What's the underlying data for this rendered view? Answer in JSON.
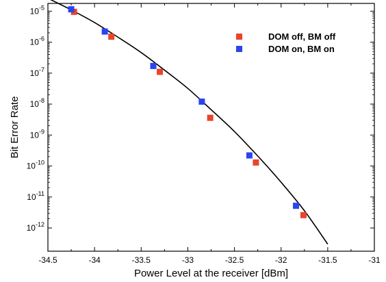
{
  "chart_data": {
    "type": "scatter",
    "title": "",
    "xlabel": "Power Level at the receiver [dBm]",
    "ylabel": "Bit Error Rate",
    "xlim": [
      -34.5,
      -31
    ],
    "ylim_log10": [
      -12.75,
      -4.75
    ],
    "yscale": "log",
    "x_ticks": [
      {
        "value": -34.5,
        "label": "-34.5"
      },
      {
        "value": -34,
        "label": "-34"
      },
      {
        "value": -33.5,
        "label": "-33.5"
      },
      {
        "value": -33,
        "label": "-33"
      },
      {
        "value": -32.5,
        "label": "-32.5"
      },
      {
        "value": -32,
        "label": "-32"
      },
      {
        "value": -31.5,
        "label": "-31.5"
      },
      {
        "value": -31,
        "label": "-31"
      }
    ],
    "y_ticks": [
      {
        "exp": -5,
        "base": "10",
        "sup": "-5"
      },
      {
        "exp": -6,
        "base": "10",
        "sup": "-6"
      },
      {
        "exp": -7,
        "base": "10",
        "sup": "-7"
      },
      {
        "exp": -8,
        "base": "10",
        "sup": "-8"
      },
      {
        "exp": -9,
        "base": "10",
        "sup": "-9"
      },
      {
        "exp": -10,
        "base": "10",
        "sup": "-10"
      },
      {
        "exp": -11,
        "base": "10",
        "sup": "-11"
      },
      {
        "exp": -12,
        "base": "10",
        "sup": "-12"
      }
    ],
    "series": [
      {
        "name": "DOM off,  BM off",
        "color": "#e8452a",
        "marker": "square",
        "points": [
          {
            "x": -34.22,
            "y": 9.5e-06
          },
          {
            "x": -33.82,
            "y": 1.5e-06
          },
          {
            "x": -33.3,
            "y": 1.1e-07
          },
          {
            "x": -32.76,
            "y": 3.6e-09
          },
          {
            "x": -32.27,
            "y": 1.3e-10
          },
          {
            "x": -31.76,
            "y": 2.6e-12
          }
        ]
      },
      {
        "name": "DOM on,  BM on",
        "color": "#2a44f0",
        "marker": "square",
        "points": [
          {
            "x": -34.25,
            "y": 1.15e-05
          },
          {
            "x": -33.89,
            "y": 2.2e-06
          },
          {
            "x": -33.37,
            "y": 1.7e-07
          },
          {
            "x": -32.85,
            "y": 1.2e-08
          },
          {
            "x": -32.34,
            "y": 2.2e-10
          },
          {
            "x": -31.84,
            "y": 5.2e-12
          }
        ]
      },
      {
        "name": "",
        "type": "line",
        "color": "#000000",
        "points": [
          {
            "x": -34.5,
            "y": 2.6e-05
          },
          {
            "x": -34.25,
            "y": 1.1e-05
          },
          {
            "x": -34.0,
            "y": 4.3e-06
          },
          {
            "x": -33.75,
            "y": 1.45e-06
          },
          {
            "x": -33.5,
            "y": 4.6e-07
          },
          {
            "x": -33.25,
            "y": 1.25e-07
          },
          {
            "x": -33.0,
            "y": 3.2e-08
          },
          {
            "x": -32.75,
            "y": 6.6e-09
          },
          {
            "x": -32.5,
            "y": 1.3e-09
          },
          {
            "x": -32.25,
            "y": 2.1e-10
          },
          {
            "x": -32.0,
            "y": 3e-11
          },
          {
            "x": -31.75,
            "y": 3.6e-12
          },
          {
            "x": -31.5,
            "y": 3e-13
          }
        ]
      }
    ],
    "legend": {
      "placement": "top-right",
      "entries": [
        {
          "label": "DOM off,  BM off",
          "color": "#e8452a"
        },
        {
          "label": "DOM on,  BM on",
          "color": "#2a44f0"
        }
      ]
    },
    "grid": false
  }
}
